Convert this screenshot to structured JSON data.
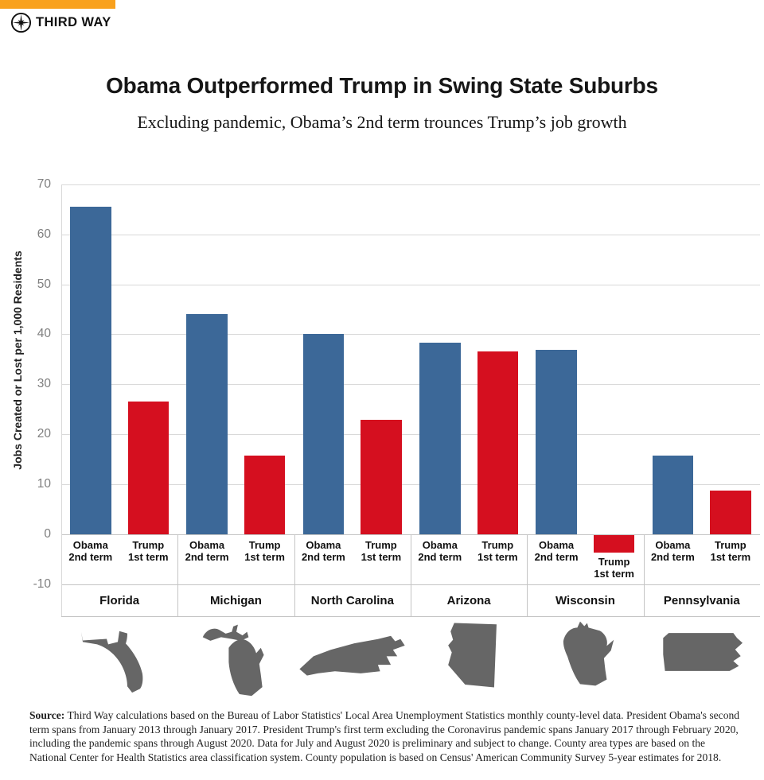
{
  "brand": {
    "name": "THIRD WAY",
    "logo_icon": "compass-icon",
    "accent_color": "#F9A11D"
  },
  "header": {
    "title": "Obama Outperformed Trump in Swing State Suburbs",
    "subtitle": "Excluding pandemic, Obama’s 2nd term trounces Trump’s job growth"
  },
  "chart_data": {
    "type": "bar",
    "title": "Obama Outperformed Trump in Swing State Suburbs",
    "subtitle": "Excluding pandemic, Obama’s 2nd term trounces Trump’s job growth",
    "xlabel": "",
    "ylabel": "Jobs Created or Lost per 1,000 Residents",
    "ylim": [
      -10,
      70
    ],
    "yticks": [
      70,
      60,
      50,
      40,
      30,
      20,
      10,
      0,
      -10
    ],
    "grid": true,
    "legend": "none (labels under bars)",
    "categories": [
      "Florida",
      "Michigan",
      "North Carolina",
      "Arizona",
      "Wisconsin",
      "Pennsylvania"
    ],
    "state_icons": [
      "florida-state-icon",
      "michigan-state-icon",
      "north-carolina-state-icon",
      "arizona-state-icon",
      "wisconsin-state-icon",
      "pennsylvania-state-icon"
    ],
    "series": [
      {
        "name": "Obama 2nd term",
        "label_lines": [
          "Obama",
          "2nd term"
        ],
        "color": "#3C6898",
        "values": [
          65.5,
          44.1,
          40.0,
          38.3,
          36.9,
          15.7
        ]
      },
      {
        "name": "Trump 1st term",
        "label_lines": [
          "Trump",
          "1st term"
        ],
        "color": "#D50F1F",
        "values": [
          26.5,
          15.8,
          22.9,
          36.6,
          -3.5,
          8.7
        ]
      }
    ]
  },
  "source": {
    "label": "Source:",
    "text": " Third Way calculations based on the Bureau of Labor Statistics' Local Area Unemployment Statistics monthly county-level data. President Obama's second term spans from January 2013 through January 2017. President Trump's first term excluding the Coronavirus pandemic spans January 2017 through February 2020, including the pandemic spans through August 2020. Data for July and August 2020 is preliminary and subject to change. County area types are based on the National Center for Health Statistics area classification system. County population is based on Census' American Community Survey 5-year estimates for 2018."
  },
  "colors": {
    "obama_blue": "#3C6898",
    "trump_red": "#D50F1F",
    "accent_orange": "#F9A11D",
    "gridline_gray": "#D9D9D9",
    "table_line_gray": "#C4C4C4",
    "tick_gray": "#7F7F7F",
    "state_shape_gray": "#666666"
  }
}
